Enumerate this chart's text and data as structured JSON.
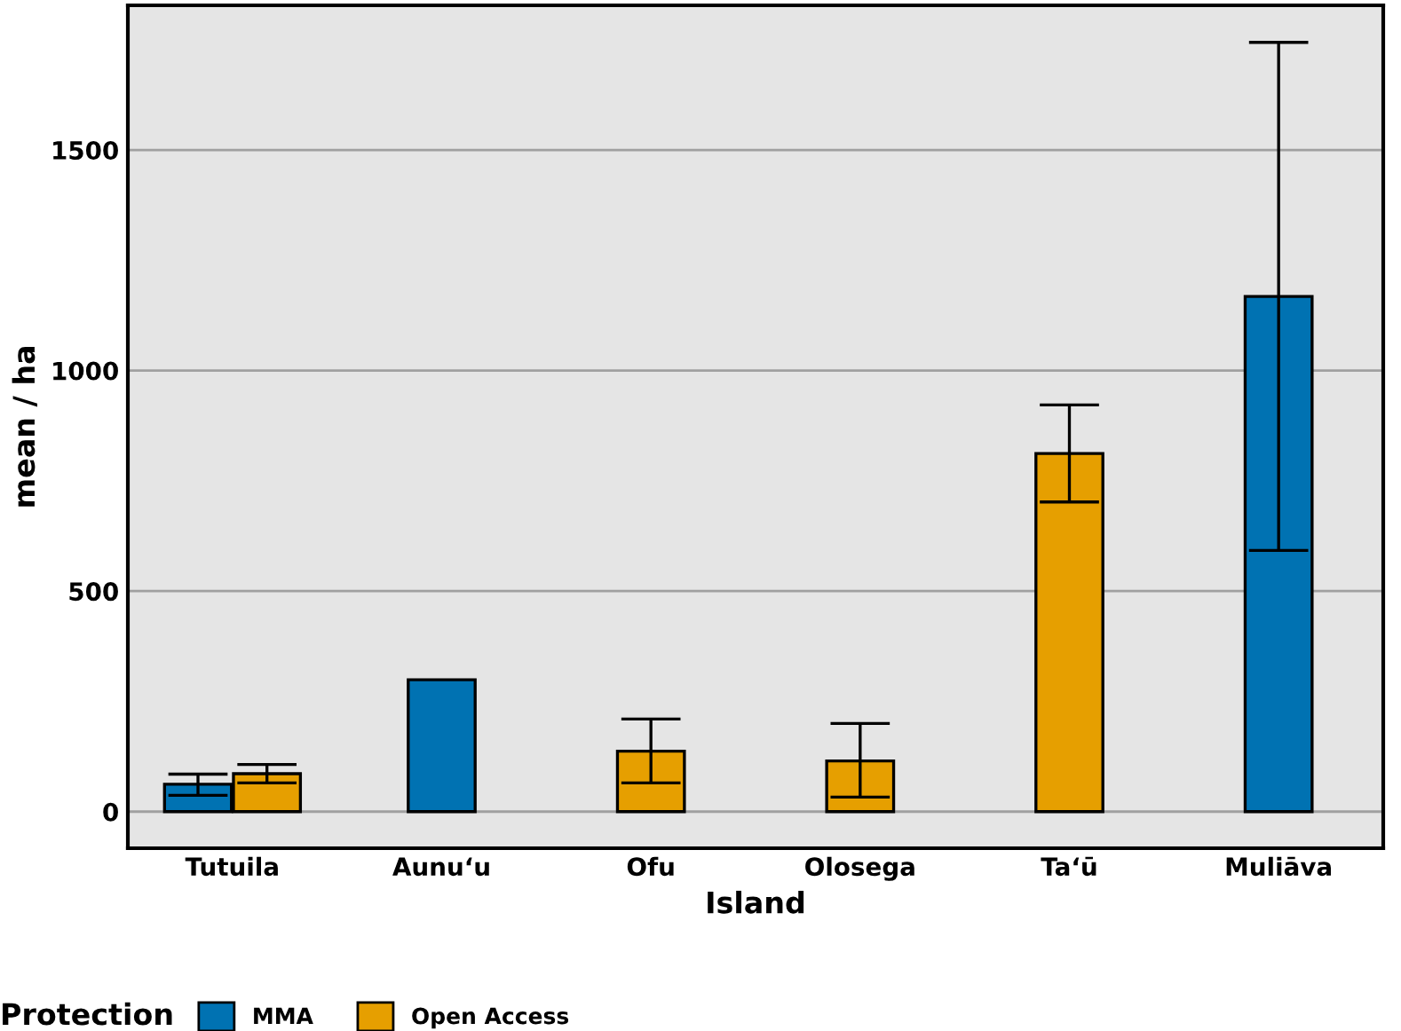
{
  "chart_data": {
    "type": "bar",
    "xlabel": "Island",
    "ylabel": "mean / ha",
    "legend_title": "Protection",
    "categories": [
      "Tutuila",
      "Aunuʻu",
      "Ofu",
      "Olosega",
      "Taʻū",
      "Muliāva"
    ],
    "series": [
      {
        "name": "MMA",
        "color": "#0072b2",
        "values": [
          62,
          299,
          null,
          null,
          null,
          1168
        ],
        "errors": [
          [
            37,
            85
          ],
          null,
          null,
          null,
          null,
          [
            592,
            1744
          ]
        ]
      },
      {
        "name": "Open Access",
        "color": "#e69f00",
        "values": [
          86,
          null,
          137,
          115,
          812,
          null
        ],
        "errors": [
          [
            65,
            107
          ],
          null,
          [
            65,
            210
          ],
          [
            33,
            200
          ],
          [
            702,
            922
          ],
          null
        ]
      }
    ],
    "ylim": [
      -83,
      1828
    ],
    "yticks": [
      0,
      500,
      1000,
      1500
    ],
    "grid": "y",
    "legend": "bottom"
  }
}
